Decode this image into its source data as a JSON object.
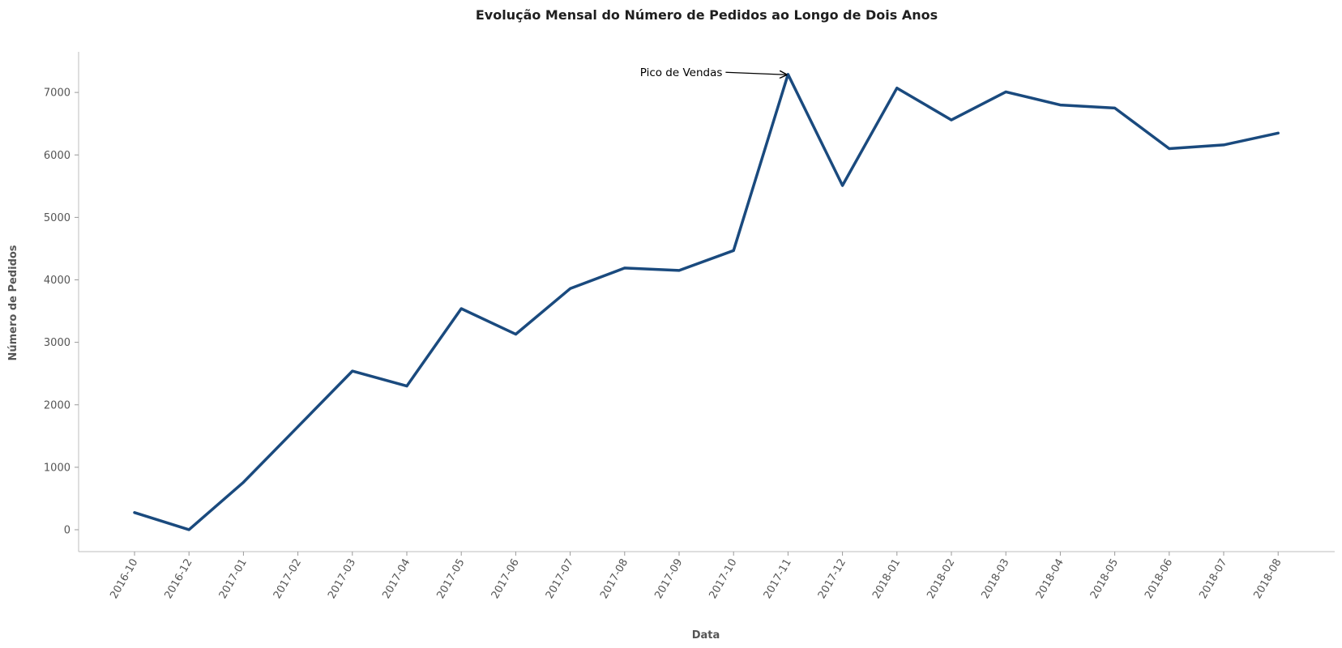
{
  "chart_data": {
    "type": "line",
    "title": "Evolução Mensal do Número de Pedidos ao Longo de Dois Anos",
    "xlabel": "Data",
    "ylabel": "Número de Pedidos",
    "categories": [
      "2016-10",
      "2016-12",
      "2017-01",
      "2017-02",
      "2017-03",
      "2017-04",
      "2017-05",
      "2017-06",
      "2017-07",
      "2017-08",
      "2017-09",
      "2017-10",
      "2017-11",
      "2017-12",
      "2018-01",
      "2018-02",
      "2018-03",
      "2018-04",
      "2018-05",
      "2018-06",
      "2018-07",
      "2018-08"
    ],
    "series": [
      {
        "values": [
          275,
          1,
          760,
          1650,
          2540,
          2300,
          3540,
          3130,
          3860,
          4190,
          4150,
          4470,
          7290,
          5510,
          7070,
          6560,
          7010,
          6800,
          6750,
          6100,
          6160,
          6350
        ],
        "color": "#1a4a7e"
      }
    ],
    "yticks": [
      0,
      1000,
      2000,
      3000,
      4000,
      5000,
      6000,
      7000
    ],
    "ylim": [
      -350,
      7650
    ],
    "grid": false,
    "annotation": {
      "text": "Pico de Vendas",
      "target_category": "2017-11",
      "target_value": 7290
    }
  }
}
